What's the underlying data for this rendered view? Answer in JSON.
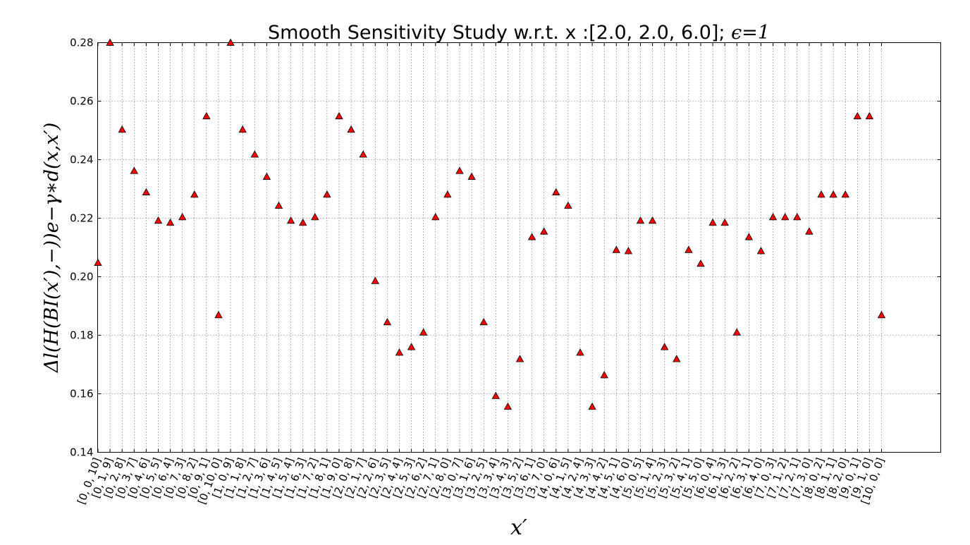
{
  "chart_data": {
    "type": "scatter",
    "title": "Smooth Sensitivity Study w.r.t. x :[2.0, 2.0, 6.0]; ",
    "title_math": "ϵ=1",
    "xlabel": "x′",
    "ylabel": "Δl(H(BI(x′),−))e−γ∗d(x,x′)",
    "ylim": [
      0.14,
      0.28
    ],
    "yticks": [
      "0.14",
      "0.16",
      "0.18",
      "0.20",
      "0.22",
      "0.24",
      "0.26",
      "0.28"
    ],
    "grid": true,
    "marker": "triangle",
    "marker_color": "#ff0000",
    "categories": [
      "[0, 0, 10]",
      "[0, 1, 9]",
      "[0, 2, 8]",
      "[0, 3, 7]",
      "[0, 4, 6]",
      "[0, 5, 5]",
      "[0, 6, 4]",
      "[0, 7, 3]",
      "[0, 8, 2]",
      "[0, 9, 1]",
      "[0, 10, 0]",
      "[1, 0, 9]",
      "[1, 1, 8]",
      "[1, 2, 7]",
      "[1, 3, 6]",
      "[1, 4, 5]",
      "[1, 5, 4]",
      "[1, 6, 3]",
      "[1, 7, 2]",
      "[1, 8, 1]",
      "[1, 9, 0]",
      "[2, 0, 8]",
      "[2, 1, 7]",
      "[2, 2, 6]",
      "[2, 3, 5]",
      "[2, 4, 4]",
      "[2, 5, 3]",
      "[2, 6, 2]",
      "[2, 7, 1]",
      "[2, 8, 0]",
      "[3, 0, 7]",
      "[3, 1, 6]",
      "[3, 2, 5]",
      "[3, 3, 4]",
      "[3, 4, 3]",
      "[3, 5, 2]",
      "[3, 6, 1]",
      "[3, 7, 0]",
      "[4, 0, 6]",
      "[4, 1, 5]",
      "[4, 2, 4]",
      "[4, 3, 3]",
      "[4, 4, 2]",
      "[4, 5, 1]",
      "[4, 6, 0]",
      "[5, 0, 5]",
      "[5, 1, 4]",
      "[5, 2, 3]",
      "[5, 3, 2]",
      "[5, 4, 1]",
      "[5, 5, 0]",
      "[6, 0, 4]",
      "[6, 1, 3]",
      "[6, 2, 2]",
      "[6, 3, 1]",
      "[6, 4, 0]",
      "[7, 0, 3]",
      "[7, 1, 2]",
      "[7, 2, 1]",
      "[7, 3, 0]",
      "[8, 0, 2]",
      "[8, 1, 1]",
      "[8, 2, 0]",
      "[9, 0, 1]",
      "[9, 1, 0]",
      "[10, 0, 0]"
    ],
    "values": [
      0.2048,
      0.28,
      0.2503,
      0.2362,
      0.2289,
      0.2192,
      0.2185,
      0.2204,
      0.2281,
      0.2549,
      0.1869,
      0.28,
      0.2503,
      0.2418,
      0.2342,
      0.2243,
      0.2192,
      0.2185,
      0.2204,
      0.2281,
      0.2549,
      0.2503,
      0.2418,
      0.1986,
      0.1845,
      0.1741,
      0.176,
      0.181,
      0.2204,
      0.2281,
      0.2362,
      0.2342,
      0.1845,
      0.1593,
      0.1556,
      0.1719,
      0.2136,
      0.2155,
      0.2289,
      0.2243,
      0.1741,
      0.1556,
      0.1664,
      0.2092,
      0.2088,
      0.2192,
      0.2192,
      0.176,
      0.1719,
      0.2092,
      0.2045,
      0.2185,
      0.2185,
      0.181,
      0.2136,
      0.2088,
      0.2204,
      0.2204,
      0.2204,
      0.2155,
      0.2281,
      0.2281,
      0.2281,
      0.2549,
      0.2549,
      0.1869
    ]
  }
}
